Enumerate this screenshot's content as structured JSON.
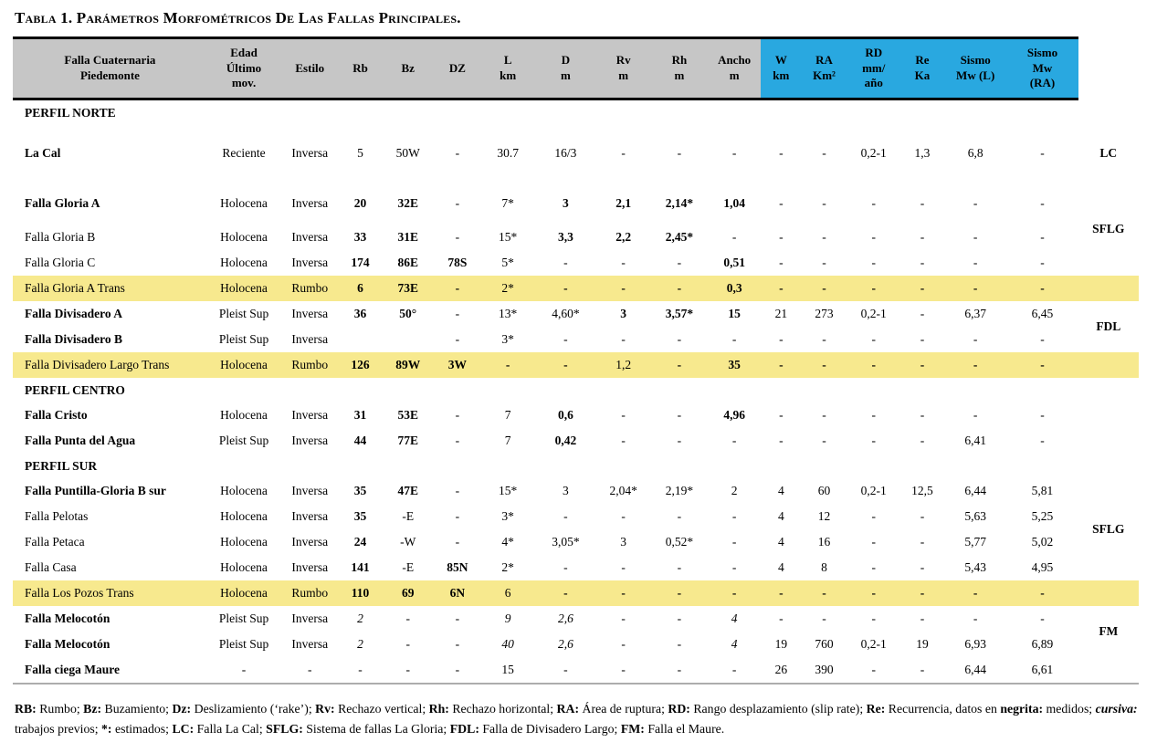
{
  "title": {
    "prefix": "Tabla 1.",
    "rest": " Parámetros Morfométricos De Las Fallas Principales."
  },
  "table": {
    "header": {
      "columns": [
        {
          "lines": [
            "Falla Cuaternaria",
            "Piedemonte"
          ],
          "bg": "gray"
        },
        {
          "lines": [
            "Edad",
            "Último",
            "mov."
          ],
          "bg": "gray"
        },
        {
          "lines": [
            "Estilo"
          ],
          "bg": "gray"
        },
        {
          "lines": [
            "Rb"
          ],
          "bg": "gray"
        },
        {
          "lines": [
            "Bz"
          ],
          "bg": "gray"
        },
        {
          "lines": [
            "DZ"
          ],
          "bg": "gray"
        },
        {
          "lines": [
            "L",
            "km"
          ],
          "bg": "gray"
        },
        {
          "lines": [
            "D",
            "m"
          ],
          "bg": "gray"
        },
        {
          "lines": [
            "Rv",
            "m"
          ],
          "bg": "gray"
        },
        {
          "lines": [
            "Rh",
            "m"
          ],
          "bg": "gray"
        },
        {
          "lines": [
            "Ancho",
            "m"
          ],
          "bg": "gray"
        },
        {
          "lines": [
            "W",
            "km"
          ],
          "bg": "blue"
        },
        {
          "lines": [
            "RA",
            "Km²"
          ],
          "bg": "blue"
        },
        {
          "lines": [
            "RD",
            "mm/",
            "año"
          ],
          "bg": "blue"
        },
        {
          "lines": [
            "Re",
            "Ka"
          ],
          "bg": "blue"
        },
        {
          "lines": [
            "Sismo",
            "Mw (L)"
          ],
          "bg": "blue"
        },
        {
          "lines": [
            "Sismo",
            "Mw",
            "(RA)"
          ],
          "bg": "blue"
        },
        {
          "lines": [],
          "bg": "none"
        }
      ]
    },
    "rows": [
      {
        "type": "section",
        "label": "PERFIL NORTE"
      },
      {
        "type": "data",
        "name": "La Cal",
        "name_bold": true,
        "size": "xl",
        "cells": [
          "Reciente",
          "Inversa",
          "5",
          "50W",
          "-",
          "30.7",
          "16/3",
          "-",
          "-",
          "-",
          "-",
          "-",
          "0,2-1",
          "1,3",
          "6,8",
          "-"
        ],
        "bold": [],
        "italic": [],
        "group": {
          "label": "LC",
          "span": 1
        }
      },
      {
        "type": "data",
        "name": "Falla Gloria A",
        "name_bold": true,
        "size": "lg",
        "cells": [
          "Holocena",
          "Inversa",
          "20",
          "32E",
          "-",
          "7*",
          "3",
          "2,1",
          "2,14*",
          "1,04",
          "-",
          "-",
          "-",
          "-",
          "-",
          "-"
        ],
        "bold": [
          2,
          3,
          6,
          7,
          8,
          9
        ],
        "italic": [],
        "group": {
          "label": "SFLG",
          "span": 3
        }
      },
      {
        "type": "data",
        "name": "Falla Gloria B",
        "name_bold": false,
        "cells": [
          "Holocena",
          "Inversa",
          "33",
          "31E",
          "-",
          "15*",
          "3,3",
          "2,2",
          "2,45*",
          "-",
          "-",
          "-",
          "-",
          "-",
          "-",
          "-"
        ],
        "bold": [
          2,
          3,
          6,
          7,
          8
        ],
        "italic": []
      },
      {
        "type": "data",
        "name": "Falla Gloria C",
        "name_bold": false,
        "cells": [
          "Holocena",
          "Inversa",
          "174",
          "86E",
          "78S",
          "5*",
          "-",
          "-",
          "-",
          "0,51",
          "-",
          "-",
          "-",
          "-",
          "-",
          "-"
        ],
        "bold": [
          2,
          3,
          4,
          9
        ],
        "italic": []
      },
      {
        "type": "data",
        "name": "Falla Gloria A Trans",
        "name_bold": false,
        "highlight": true,
        "cells": [
          "Holocena",
          "Rumbo",
          "6",
          "73E",
          "-",
          "2*",
          "-",
          "-",
          "-",
          "0,3",
          "-",
          "-",
          "-",
          "-",
          "-",
          "-"
        ],
        "bold": [
          2,
          3,
          4,
          6,
          7,
          8,
          9,
          10,
          11,
          12,
          13,
          14,
          15
        ],
        "italic": []
      },
      {
        "type": "data",
        "name": "Falla Divisadero A",
        "name_bold": true,
        "cells": [
          "Pleist Sup",
          "Inversa",
          "36",
          "50°",
          "-",
          "13*",
          "4,60*",
          "3",
          "3,57*",
          "15",
          "21",
          "273",
          "0,2-1",
          "-",
          "6,37",
          "6,45"
        ],
        "bold": [
          2,
          3,
          7,
          8,
          9
        ],
        "italic": [],
        "group": {
          "label": "FDL",
          "span": 2
        }
      },
      {
        "type": "data",
        "name": "Falla Divisadero B",
        "name_bold": true,
        "cells": [
          "Pleist Sup",
          "Inversa",
          "",
          "",
          "-",
          "3*",
          "-",
          "-",
          "-",
          "-",
          "-",
          "-",
          "-",
          "-",
          "-",
          "-"
        ],
        "bold": [],
        "italic": []
      },
      {
        "type": "data",
        "name": "Falla Divisadero Largo Trans",
        "name_bold": false,
        "highlight": true,
        "cells": [
          "Holocena",
          "Rumbo",
          "126",
          "89W",
          "3W",
          "-",
          "-",
          "1,2",
          "-",
          "35",
          "-",
          "-",
          "-",
          "-",
          "-",
          "-"
        ],
        "bold": [
          2,
          3,
          4,
          5,
          6,
          8,
          9,
          10,
          11,
          12,
          13,
          14,
          15
        ],
        "italic": []
      },
      {
        "type": "section",
        "label": "PERFIL CENTRO"
      },
      {
        "type": "data",
        "name": "Falla Cristo",
        "name_bold": true,
        "cells": [
          "Holocena",
          "Inversa",
          "31",
          "53E",
          "-",
          "7",
          "0,6",
          "-",
          "-",
          "4,96",
          "-",
          "-",
          "-",
          "-",
          "-",
          "-"
        ],
        "bold": [
          2,
          3,
          6,
          9
        ],
        "italic": []
      },
      {
        "type": "data",
        "name": "Falla Punta del Agua",
        "name_bold": true,
        "cells": [
          "Pleist Sup",
          "Inversa",
          "44",
          "77E",
          "-",
          "7",
          "0,42",
          "-",
          "-",
          "-",
          "-",
          "-",
          "-",
          "-",
          "6,41",
          "-"
        ],
        "bold": [
          2,
          3,
          6
        ],
        "italic": []
      },
      {
        "type": "section",
        "label": "PERFIL SUR"
      },
      {
        "type": "data",
        "name": "Falla Puntilla-Gloria B sur",
        "name_bold": true,
        "cells": [
          "Holocena",
          "Inversa",
          "35",
          "47E",
          "-",
          "15*",
          "3",
          "2,04*",
          "2,19*",
          "2",
          "4",
          "60",
          "0,2-1",
          "12,5",
          "6,44",
          "5,81"
        ],
        "bold": [
          2,
          3
        ],
        "italic": [],
        "group": {
          "label": "SFLG",
          "span": 4
        }
      },
      {
        "type": "data",
        "name": "Falla Pelotas",
        "name_bold": false,
        "cells": [
          "Holocena",
          "Inversa",
          "35",
          "-E",
          "-",
          "3*",
          "-",
          "-",
          "-",
          "-",
          "4",
          "12",
          "-",
          "-",
          "5,63",
          "5,25"
        ],
        "bold": [
          2
        ],
        "italic": []
      },
      {
        "type": "data",
        "name": "Falla Petaca",
        "name_bold": false,
        "cells": [
          "Holocena",
          "Inversa",
          "24",
          "-W",
          "-",
          "4*",
          "3,05*",
          "3",
          "0,52*",
          "-",
          "4",
          "16",
          "-",
          "-",
          "5,77",
          "5,02"
        ],
        "bold": [
          2
        ],
        "italic": []
      },
      {
        "type": "data",
        "name": "Falla Casa",
        "name_bold": false,
        "cells": [
          "Holocena",
          "Inversa",
          "141",
          "-E",
          "85N",
          "2*",
          "-",
          "-",
          "-",
          "-",
          "4",
          "8",
          "-",
          "-",
          "5,43",
          "4,95"
        ],
        "bold": [
          2,
          4
        ],
        "italic": []
      },
      {
        "type": "data",
        "name": "Falla Los Pozos Trans",
        "name_bold": false,
        "highlight": true,
        "cells": [
          "Holocena",
          "Rumbo",
          "110",
          "69",
          "6N",
          "6",
          "-",
          "-",
          "-",
          "-",
          "-",
          "-",
          "-",
          "-",
          "-",
          "-"
        ],
        "bold": [
          2,
          3,
          4,
          6,
          7,
          8,
          9,
          10,
          11,
          12,
          13,
          14,
          15
        ],
        "italic": []
      },
      {
        "type": "data",
        "name": "Falla Melocotón",
        "name_bold": true,
        "cells": [
          "Pleist Sup",
          "Inversa",
          "2",
          "-",
          "-",
          "9",
          "2,6",
          "-",
          "-",
          "4",
          "-",
          "-",
          "-",
          "-",
          "-",
          "-"
        ],
        "bold": [],
        "italic": [
          2,
          5,
          6,
          9
        ],
        "group": {
          "label": "FM",
          "span": 2
        }
      },
      {
        "type": "data",
        "name": "Falla Melocotón",
        "name_bold": true,
        "cells": [
          "Pleist Sup",
          "Inversa",
          "2",
          "-",
          "-",
          "40",
          "2,6",
          "-",
          "-",
          "4",
          "19",
          "760",
          "0,2-1",
          "19",
          "6,93",
          "6,89"
        ],
        "bold": [],
        "italic": [
          2,
          5,
          6,
          9
        ]
      },
      {
        "type": "data",
        "name": "Falla ciega Maure",
        "name_bold": true,
        "cells": [
          "-",
          "-",
          "-",
          "-",
          "-",
          "15",
          "-",
          "-",
          "-",
          "-",
          "26",
          "390",
          "-",
          "-",
          "6,44",
          "6,61"
        ],
        "bold": [],
        "italic": []
      }
    ]
  },
  "footnote": {
    "segments": [
      {
        "t": "RB:",
        "b": 1
      },
      {
        "t": " Rumbo; "
      },
      {
        "t": "Bz:",
        "b": 1
      },
      {
        "t": " Buzamiento; "
      },
      {
        "t": "Dz:",
        "b": 1
      },
      {
        "t": " Deslizamiento (‘rake’); "
      },
      {
        "t": "Rv:",
        "b": 1
      },
      {
        "t": " Rechazo vertical; "
      },
      {
        "t": "Rh:",
        "b": 1
      },
      {
        "t": " Rechazo horizontal; "
      },
      {
        "t": "RA:",
        "b": 1
      },
      {
        "t": " Área de ruptura; "
      },
      {
        "t": "RD:",
        "b": 1
      },
      {
        "t": " Rango desplazamiento (slip rate); "
      },
      {
        "t": "Re:",
        "b": 1
      },
      {
        "t": " Recurrencia, datos en "
      },
      {
        "t": "negrita:",
        "b": 1
      },
      {
        "t": " medidos; "
      },
      {
        "t": "cursiva:",
        "b": 1,
        "i": 1
      },
      {
        "t": " trabajos previos; "
      },
      {
        "t": "*:",
        "b": 1
      },
      {
        "t": " estimados; "
      },
      {
        "t": "LC:",
        "b": 1
      },
      {
        "t": " Falla La Cal; "
      },
      {
        "t": "SFLG:",
        "b": 1
      },
      {
        "t": " Sistema de fallas La Gloria; "
      },
      {
        "t": "FDL:",
        "b": 1
      },
      {
        "t": " Falla de Divisadero Largo; "
      },
      {
        "t": "FM:",
        "b": 1
      },
      {
        "t": " Falla el Maure."
      }
    ]
  },
  "colors": {
    "header_gray": "#c6c6c6",
    "header_blue": "#29a8e0",
    "row_highlight": "#f7e98e",
    "bottom_rule": "#adadad"
  }
}
